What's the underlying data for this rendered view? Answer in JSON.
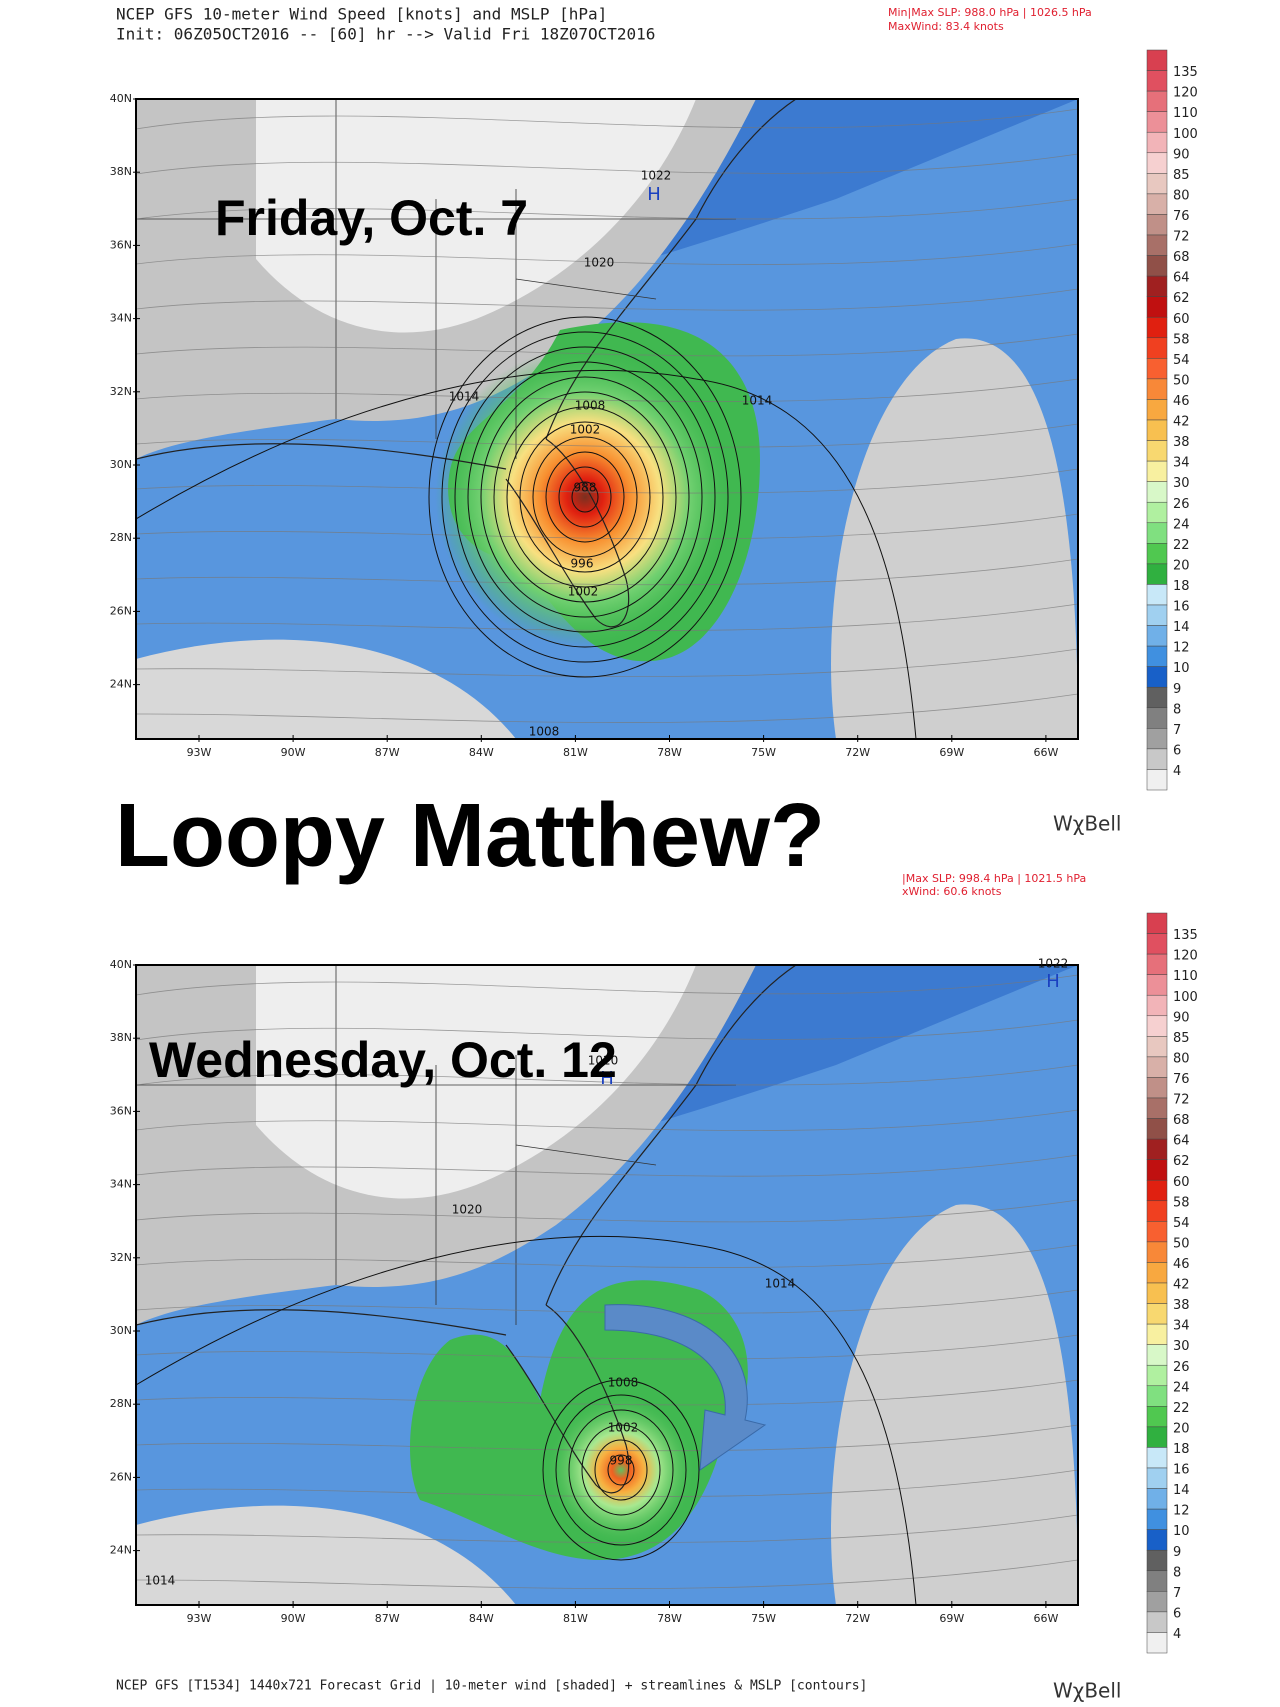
{
  "header": {
    "title": "NCEP GFS 10-meter Wind Speed [knots] and MSLP [hPa]",
    "init": "Init: 06Z05OCT2016 -- [60] hr --> Valid Fri 18Z07OCT2016"
  },
  "headline": "Loopy Matthew?",
  "brand": "WχBell",
  "footer": "NCEP GFS [T1534] 1440x721 Forecast Grid | 10-meter wind [shaded] + streamlines & MSLP [contours]",
  "lat_labels": [
    "40N",
    "38N",
    "36N",
    "34N",
    "32N",
    "30N",
    "28N",
    "26N",
    "24N"
  ],
  "lon_labels": [
    "93W",
    "90W",
    "87W",
    "84W",
    "81W",
    "78W",
    "75W",
    "72W",
    "69W",
    "66W"
  ],
  "colorbar_labels": [
    "135",
    "120",
    "110",
    "100",
    "90",
    "85",
    "80",
    "76",
    "72",
    "68",
    "64",
    "62",
    "60",
    "58",
    "54",
    "50",
    "46",
    "42",
    "38",
    "34",
    "30",
    "26",
    "24",
    "22",
    "20",
    "18",
    "16",
    "14",
    "12",
    "10",
    "9",
    "8",
    "7",
    "6",
    "4"
  ],
  "panels": [
    {
      "info": [
        "Min|Max SLP: 988.0 hPa | 1026.5 hPa",
        "MaxWind: 83.4 knots"
      ],
      "label": "Friday, Oct. 7",
      "contour_labels": [
        "1022",
        "H",
        "1020",
        "1014",
        "1008",
        "1002",
        "988",
        "996",
        "1002",
        "1014",
        "1008"
      ]
    },
    {
      "info": [
        "|Max SLP: 998.4 hPa | 1021.5 hPa",
        "xWind: 60.6 knots"
      ],
      "label": "Wednesday, Oct. 12",
      "contour_labels": [
        "1022",
        "H",
        "1020",
        "H",
        "1020",
        "1014",
        "1008",
        "1002",
        "998",
        "1014"
      ]
    }
  ]
}
